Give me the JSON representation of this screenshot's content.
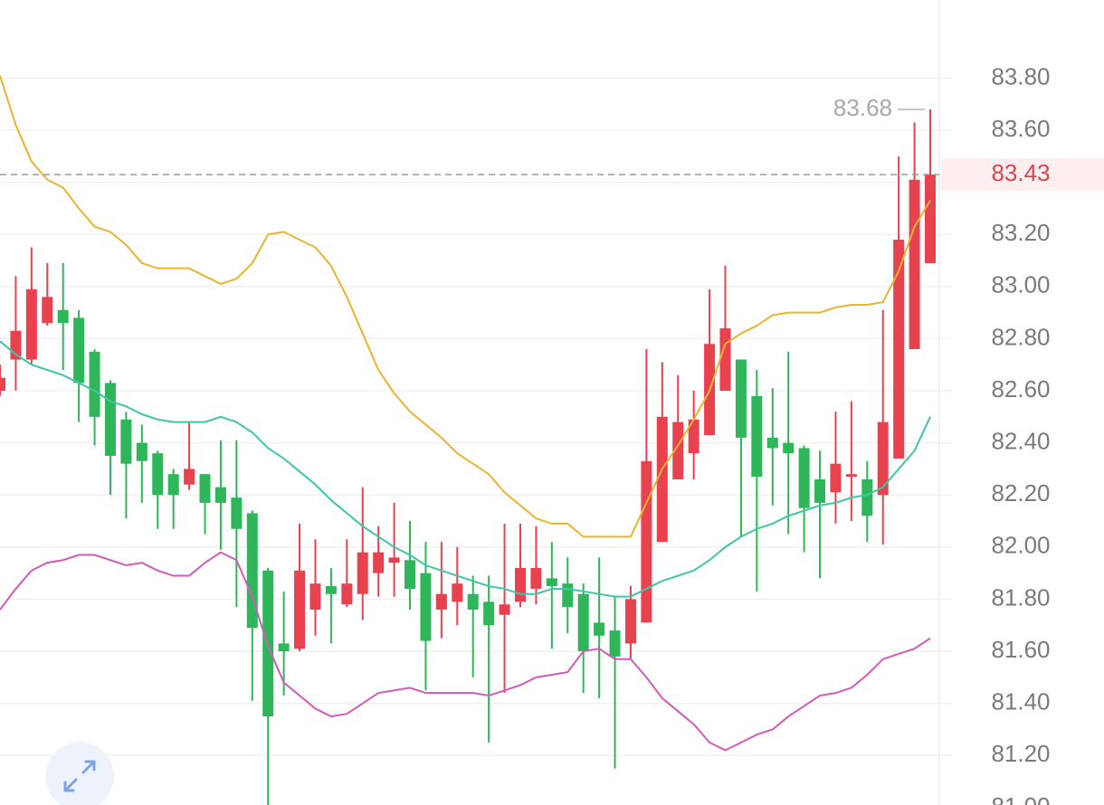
{
  "chart_data": {
    "type": "candlestick",
    "ylim": [
      81.01,
      84.1
    ],
    "yticks": [
      {
        "value": 81.0,
        "label": "81.00"
      },
      {
        "value": 81.2,
        "label": "81.20"
      },
      {
        "value": 81.4,
        "label": "81.40"
      },
      {
        "value": 81.6,
        "label": "81.60"
      },
      {
        "value": 81.8,
        "label": "81.80"
      },
      {
        "value": 82.0,
        "label": "82.00"
      },
      {
        "value": 82.2,
        "label": "82.20"
      },
      {
        "value": 82.4,
        "label": "82.40"
      },
      {
        "value": 82.6,
        "label": "82.60"
      },
      {
        "value": 82.8,
        "label": "82.80"
      },
      {
        "value": 83.0,
        "label": "83.00"
      },
      {
        "value": 83.2,
        "label": "83.20"
      },
      {
        "value": 83.4,
        "label": "83.40"
      },
      {
        "value": 83.6,
        "label": "83.60"
      },
      {
        "value": 83.8,
        "label": "83.80"
      }
    ],
    "grid": true,
    "up_color": "#e8424f",
    "down_color": "#2fb65a",
    "open": [
      82.6,
      82.72,
      82.72,
      82.86,
      82.91,
      82.88,
      82.75,
      82.63,
      82.49,
      82.4,
      82.36,
      82.28,
      82.24,
      82.28,
      82.23,
      82.19,
      82.13,
      81.91,
      81.63,
      81.61,
      81.76,
      81.85,
      81.78,
      81.82,
      81.9,
      81.94,
      81.95,
      81.9,
      81.76,
      81.79,
      81.82,
      81.79,
      81.74,
      81.79,
      81.84,
      81.88,
      81.86,
      81.82,
      81.71,
      81.68,
      81.63,
      81.71,
      82.02,
      82.26,
      82.36,
      82.43,
      82.6,
      82.72,
      82.58,
      82.42,
      82.4,
      82.38,
      82.26,
      82.21,
      82.27,
      82.26,
      82.2,
      82.34,
      82.76,
      83.09
    ],
    "high": [
      82.7,
      83.04,
      83.15,
      83.09,
      83.09,
      82.91,
      82.76,
      82.64,
      82.52,
      82.47,
      82.37,
      82.3,
      82.48,
      82.28,
      82.41,
      82.41,
      82.14,
      81.92,
      81.83,
      82.09,
      82.03,
      81.92,
      82.03,
      82.23,
      82.08,
      82.17,
      82.1,
      82.02,
      82.02,
      82.0,
      81.89,
      81.89,
      82.09,
      82.09,
      82.08,
      82.02,
      81.96,
      81.86,
      81.96,
      81.81,
      81.85,
      82.76,
      82.71,
      82.66,
      82.6,
      82.99,
      83.08,
      82.72,
      82.68,
      82.61,
      82.75,
      82.39,
      82.37,
      82.52,
      82.56,
      82.33,
      82.91,
      83.5,
      83.63,
      83.68
    ],
    "low": [
      82.58,
      82.6,
      82.7,
      82.85,
      82.68,
      82.48,
      82.39,
      82.2,
      82.11,
      82.17,
      82.07,
      82.07,
      82.22,
      82.05,
      81.99,
      81.77,
      81.41,
      81.01,
      81.43,
      81.6,
      81.66,
      81.63,
      81.77,
      81.72,
      81.81,
      81.81,
      81.76,
      81.45,
      81.65,
      81.7,
      81.5,
      81.25,
      81.44,
      81.77,
      81.78,
      81.61,
      81.67,
      81.44,
      81.42,
      81.15,
      81.57,
      81.71,
      82.02,
      82.26,
      82.26,
      82.43,
      82.6,
      82.04,
      81.83,
      82.16,
      82.05,
      81.98,
      81.88,
      82.09,
      82.1,
      82.02,
      82.01,
      82.34,
      82.76,
      83.09
    ],
    "close": [
      82.65,
      82.83,
      82.99,
      82.96,
      82.86,
      82.63,
      82.5,
      82.35,
      82.32,
      82.33,
      82.2,
      82.2,
      82.3,
      82.17,
      82.17,
      82.07,
      81.69,
      81.35,
      81.6,
      81.91,
      81.86,
      81.82,
      81.86,
      81.98,
      81.98,
      81.96,
      81.84,
      81.64,
      81.82,
      81.86,
      81.76,
      81.7,
      81.78,
      81.92,
      81.92,
      81.85,
      81.77,
      81.6,
      81.66,
      81.58,
      81.8,
      82.33,
      82.5,
      82.48,
      82.49,
      82.78,
      82.84,
      82.42,
      82.27,
      82.38,
      82.36,
      82.15,
      82.17,
      82.32,
      82.28,
      82.12,
      82.48,
      83.18,
      83.41,
      83.43
    ],
    "lines": [
      {
        "color": "#e9b430",
        "values": [
          83.81,
          83.62,
          83.48,
          83.41,
          83.38,
          83.3,
          83.23,
          83.21,
          83.16,
          83.09,
          83.07,
          83.07,
          83.07,
          83.04,
          83.01,
          83.03,
          83.09,
          83.2,
          83.21,
          83.18,
          83.15,
          83.08,
          82.96,
          82.82,
          82.68,
          82.59,
          82.52,
          82.47,
          82.42,
          82.36,
          82.32,
          82.28,
          82.21,
          82.16,
          82.11,
          82.09,
          82.09,
          82.04,
          82.04,
          82.04,
          82.04,
          82.17,
          82.3,
          82.39,
          82.49,
          82.6,
          82.78,
          82.82,
          82.85,
          82.89,
          82.9,
          82.9,
          82.9,
          82.92,
          82.93,
          82.93,
          82.94,
          83.06,
          83.23,
          83.33
        ]
      },
      {
        "color": "#3ec6a6",
        "values": [
          82.79,
          82.74,
          82.7,
          82.68,
          82.66,
          82.63,
          82.6,
          82.56,
          82.54,
          82.51,
          82.49,
          82.48,
          82.48,
          82.48,
          82.5,
          82.48,
          82.44,
          82.38,
          82.34,
          82.29,
          82.24,
          82.18,
          82.13,
          82.08,
          82.04,
          82.0,
          81.97,
          81.93,
          81.91,
          81.89,
          81.87,
          81.85,
          81.84,
          81.82,
          81.82,
          81.84,
          81.84,
          81.83,
          81.82,
          81.81,
          81.81,
          81.84,
          81.87,
          81.89,
          81.91,
          81.95,
          82.0,
          82.04,
          82.07,
          82.09,
          82.12,
          82.14,
          82.16,
          82.17,
          82.19,
          82.2,
          82.23,
          82.3,
          82.37,
          82.5
        ]
      },
      {
        "color": "#d25ab8",
        "values": [
          81.76,
          81.84,
          81.91,
          81.94,
          81.95,
          81.97,
          81.97,
          81.95,
          81.93,
          81.94,
          81.91,
          81.89,
          81.89,
          81.94,
          81.98,
          81.95,
          81.81,
          81.62,
          81.48,
          81.43,
          81.38,
          81.35,
          81.36,
          81.4,
          81.44,
          81.45,
          81.46,
          81.44,
          81.44,
          81.44,
          81.44,
          81.43,
          81.45,
          81.47,
          81.5,
          81.51,
          81.52,
          81.6,
          81.61,
          81.57,
          81.57,
          81.5,
          81.42,
          81.37,
          81.32,
          81.25,
          81.22,
          81.25,
          81.28,
          81.3,
          81.35,
          81.39,
          81.43,
          81.44,
          81.46,
          81.51,
          81.57,
          81.59,
          81.61,
          81.65
        ]
      }
    ],
    "high_marker": 83.68,
    "last_price": 83.43
  }
}
